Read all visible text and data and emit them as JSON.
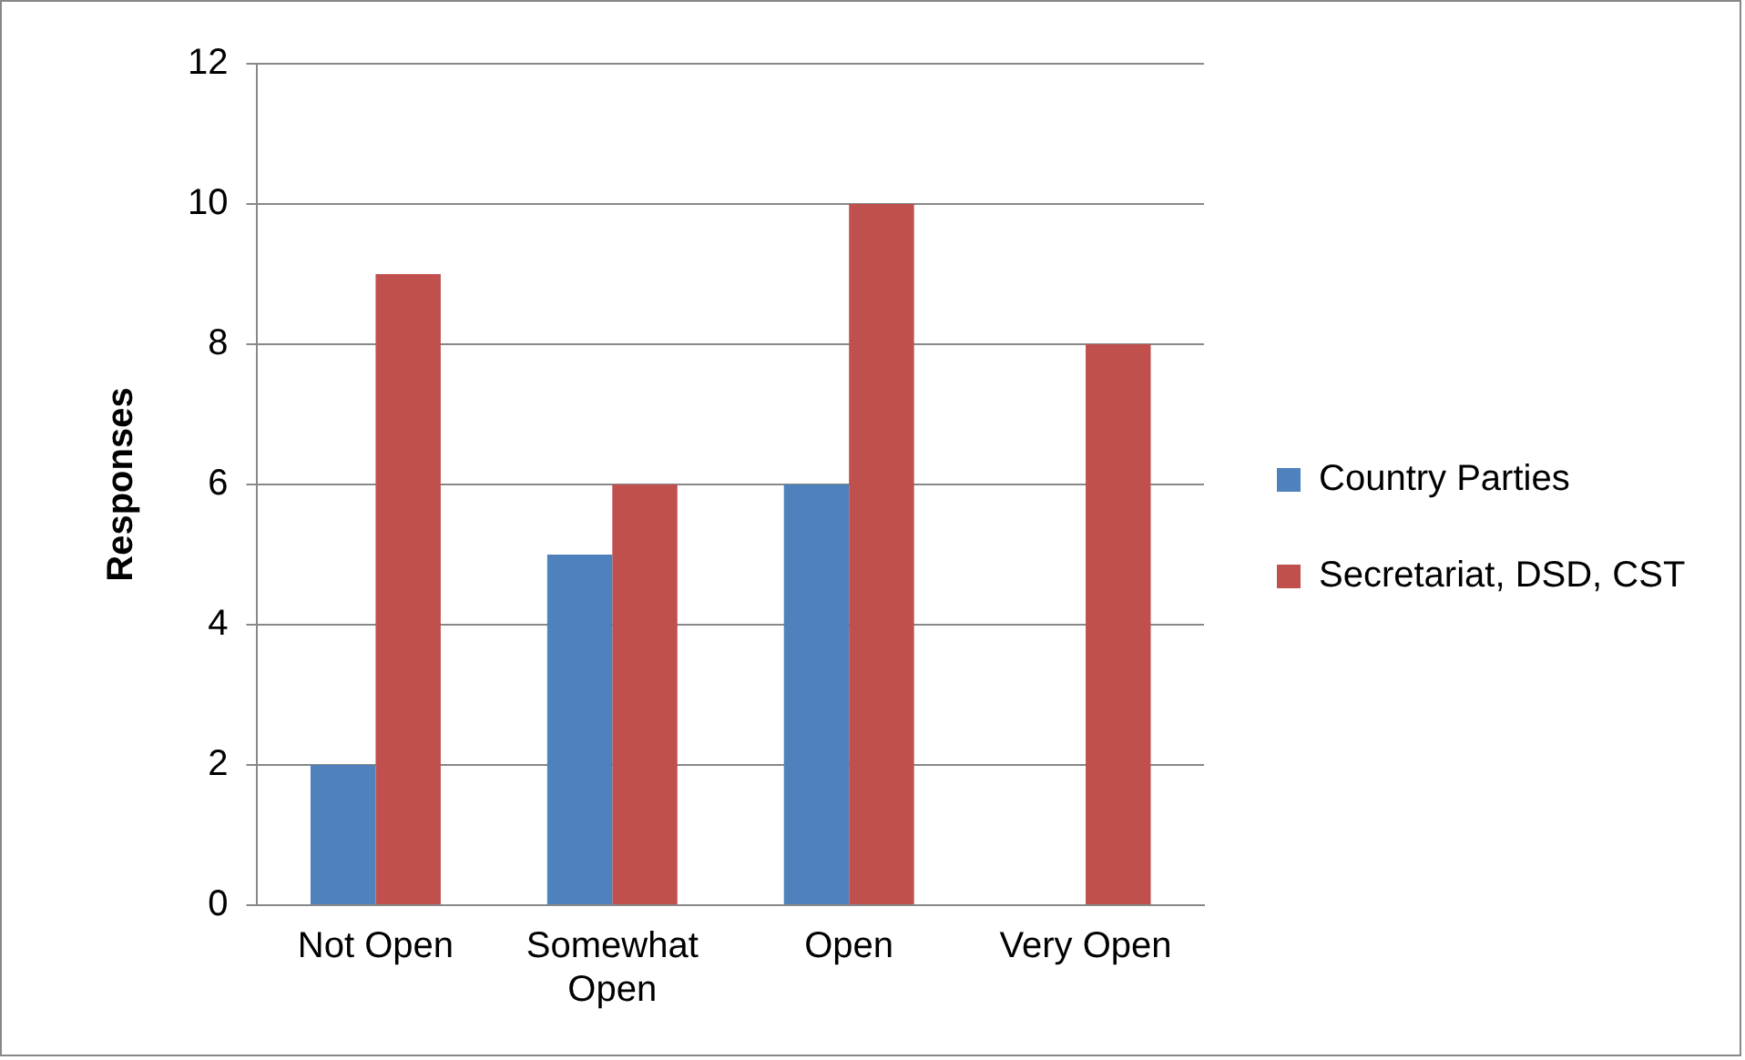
{
  "chart_data": {
    "type": "bar",
    "ylabel": "Responses",
    "categories": [
      "Not Open",
      "Somewhat Open",
      "Open",
      "Very Open"
    ],
    "series": [
      {
        "name": "Country Parties",
        "color": "#4f81bd",
        "values": [
          2,
          5,
          6,
          0
        ]
      },
      {
        "name": "Secretariat, DSD, CST",
        "color": "#c0504d",
        "values": [
          9,
          6,
          10,
          8
        ]
      }
    ],
    "ylim": [
      0,
      12
    ],
    "yticks": [
      0,
      2,
      4,
      6,
      8,
      10,
      12
    ],
    "grid": "y",
    "legend": "right"
  }
}
